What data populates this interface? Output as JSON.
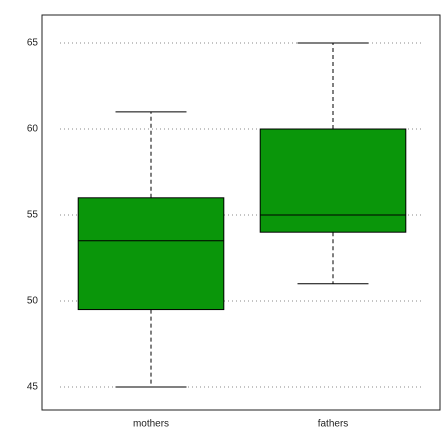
{
  "chart_data": {
    "type": "box",
    "categories": [
      "mothers",
      "fathers"
    ],
    "boxes": [
      {
        "min": 45,
        "q1": 49.5,
        "median": 53.5,
        "q3": 56,
        "max": 61
      },
      {
        "min": 51,
        "q1": 54,
        "median": 55,
        "q3": 60,
        "max": 65
      }
    ],
    "color": "#0a960a",
    "ylim": [
      43.66,
      66.63
    ],
    "yticks": [
      45,
      50,
      55,
      60,
      65
    ],
    "grid": true
  }
}
